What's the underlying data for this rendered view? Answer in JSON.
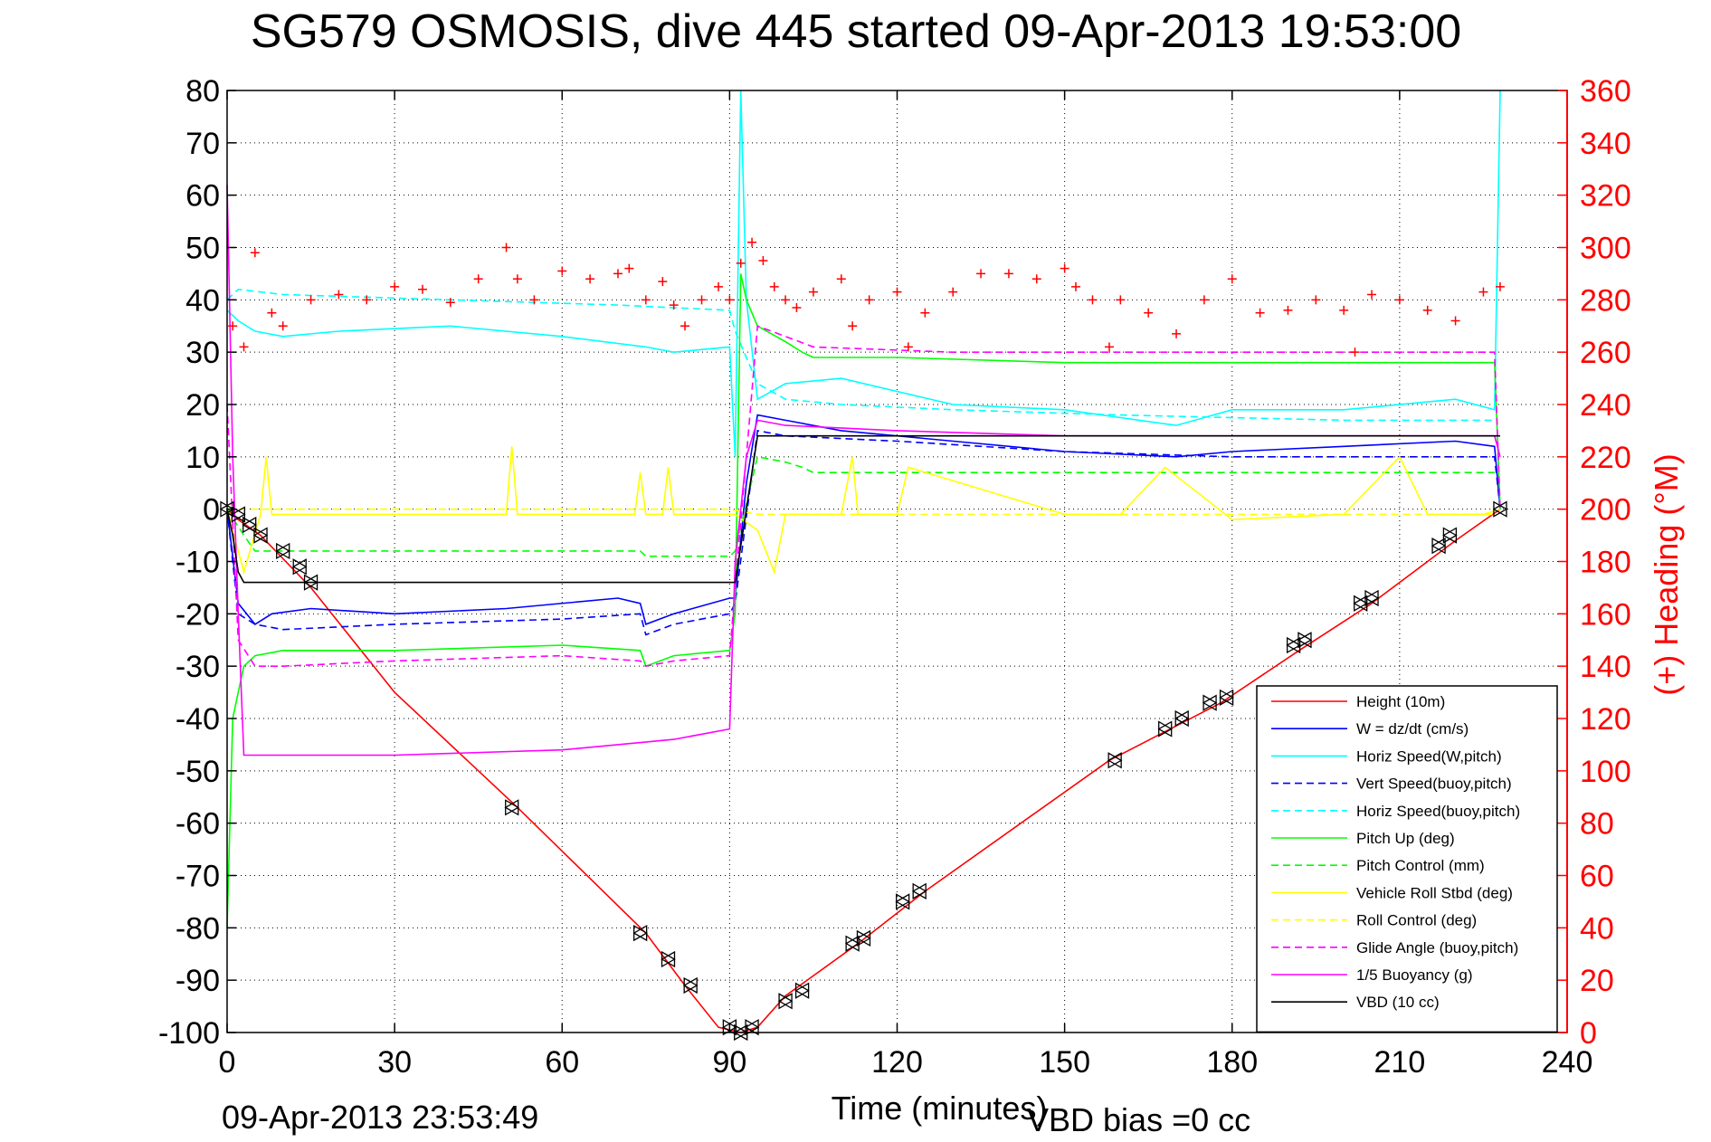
{
  "chart_data": {
    "type": "line",
    "title": "SG579 OSMOSIS, dive 445 started 09-Apr-2013 19:53:00",
    "xlabel": "Time (minutes)",
    "ylabel_right": "(+) Heading (°M)",
    "footer_left": "09-Apr-2013 23:53:49",
    "footer_right": "VBD bias =0 cc",
    "xlim": [
      0,
      240
    ],
    "ylim": [
      -100,
      80
    ],
    "ylim_right": [
      0,
      360
    ],
    "x_ticks": [
      0,
      30,
      60,
      90,
      120,
      150,
      180,
      210,
      240
    ],
    "y_ticks": [
      80,
      70,
      60,
      50,
      40,
      30,
      20,
      10,
      0,
      -10,
      -20,
      -30,
      -40,
      -50,
      -60,
      -70,
      -80,
      -90,
      -100
    ],
    "y_ticks_right": [
      360,
      340,
      320,
      300,
      280,
      260,
      240,
      220,
      200,
      180,
      160,
      140,
      120,
      100,
      80,
      60,
      40,
      20,
      0
    ],
    "grid": true,
    "legend_position": "bottom-right",
    "colors": {
      "red": "#ff0000",
      "blue": "#0000ff",
      "cyan": "#00ffff",
      "green": "#00ff00",
      "yellow": "#ffff00",
      "magenta": "#ff00ff",
      "black": "#000000"
    },
    "series": [
      {
        "name": "Height (10m)",
        "color": "#ff0000",
        "style": "solid",
        "x": [
          0,
          2,
          6,
          15,
          30,
          52,
          75,
          82,
          88,
          92,
          95,
          100,
          113,
          125,
          158,
          178,
          192,
          205,
          220,
          228
        ],
        "y": [
          0,
          -2,
          -5,
          -15,
          -35,
          -57,
          -81,
          -91,
          -99,
          -100,
          -99,
          -93,
          -83,
          -73,
          -48,
          -37,
          -27,
          -18,
          -6,
          0
        ]
      },
      {
        "name": "W = dz/dt (cm/s)",
        "color": "#0000ff",
        "style": "solid",
        "x": [
          0,
          2,
          5,
          8,
          15,
          30,
          50,
          70,
          74,
          75,
          80,
          90,
          91,
          93,
          95,
          100,
          110,
          130,
          150,
          170,
          180,
          200,
          220,
          227,
          228
        ],
        "y": [
          0,
          -18,
          -22,
          -20,
          -19,
          -20,
          -19,
          -17,
          -18,
          -22,
          -20,
          -17,
          -17,
          5,
          18,
          17,
          15,
          13,
          11,
          10,
          11,
          12,
          13,
          12,
          0
        ]
      },
      {
        "name": "Horiz Speed(W,pitch)",
        "color": "#00ffff",
        "style": "solid",
        "x": [
          0,
          2,
          5,
          10,
          20,
          40,
          60,
          75,
          80,
          90,
          91,
          92,
          93,
          95,
          100,
          110,
          130,
          150,
          170,
          180,
          200,
          220,
          227,
          228
        ],
        "y": [
          38,
          36,
          34,
          33,
          34,
          35,
          33,
          31,
          30,
          31,
          10,
          80,
          40,
          21,
          24,
          25,
          20,
          19,
          16,
          19,
          19,
          21,
          19,
          80
        ]
      },
      {
        "name": "Vert Speed(buoy,pitch)",
        "color": "#0000ff",
        "style": "dashed",
        "x": [
          0,
          2,
          5,
          10,
          30,
          60,
          74,
          75,
          80,
          90,
          91,
          95,
          100,
          120,
          150,
          180,
          200,
          227,
          228
        ],
        "y": [
          0,
          -20,
          -22,
          -23,
          -22,
          -21,
          -20,
          -24,
          -22,
          -20,
          -18,
          15,
          14,
          13,
          11,
          10,
          10,
          10,
          0
        ]
      },
      {
        "name": "Horiz Speed(buoy,pitch)",
        "color": "#00ffff",
        "style": "dashed",
        "x": [
          0,
          2,
          10,
          40,
          70,
          90,
          91,
          95,
          100,
          110,
          130,
          160,
          200,
          227
        ],
        "y": [
          40,
          42,
          41,
          40,
          39,
          38,
          34,
          24,
          21,
          20,
          19,
          18,
          17,
          17
        ]
      },
      {
        "name": "Pitch Up (deg)",
        "color": "#00ff00",
        "style": "solid",
        "x": [
          0,
          1,
          2,
          3,
          5,
          10,
          30,
          60,
          74,
          75,
          80,
          90,
          91,
          92,
          93,
          95,
          100,
          103,
          105,
          120,
          150,
          180,
          200,
          227,
          228
        ],
        "y": [
          -80,
          -40,
          -35,
          -30,
          -28,
          -27,
          -27,
          -26,
          -27,
          -30,
          -28,
          -27,
          -20,
          45,
          40,
          35,
          32,
          30,
          29,
          29,
          28,
          28,
          28,
          28,
          0
        ]
      },
      {
        "name": "Pitch Control (mm)",
        "color": "#00ff00",
        "style": "dashed",
        "x": [
          0,
          3,
          5,
          30,
          74,
          75,
          90,
          91,
          95,
          100,
          103,
          105,
          227
        ],
        "y": [
          0,
          -5,
          -8,
          -8,
          -8,
          -9,
          -9,
          -8,
          10,
          9,
          8,
          7,
          7
        ]
      },
      {
        "name": "Vehicle Roll Stbd (deg)",
        "color": "#ffff00",
        "style": "solid",
        "x": [
          0,
          3,
          6,
          7,
          8,
          20,
          50,
          51,
          52,
          60,
          73,
          74,
          75,
          78,
          79,
          80,
          90,
          91,
          95,
          98,
          100,
          110,
          112,
          113,
          120,
          122,
          150,
          160,
          168,
          180,
          200,
          210,
          215,
          225,
          228
        ],
        "y": [
          0,
          -12,
          -1,
          10,
          -1,
          -1,
          -1,
          12,
          -1,
          -1,
          -1,
          7,
          -1,
          -1,
          8,
          -1,
          -1,
          -1,
          -4,
          -12,
          -1,
          -1,
          10,
          -1,
          -1,
          8,
          -1,
          -1,
          8,
          -2,
          -1,
          10,
          -1,
          -1,
          0
        ]
      },
      {
        "name": "Roll Control (deg)",
        "color": "#ffff00",
        "style": "dashed",
        "x": [
          0,
          5,
          90,
          95,
          100,
          227
        ],
        "y": [
          0,
          0,
          0,
          -1,
          -1,
          -1
        ]
      },
      {
        "name": "Glide Angle (buoy,pitch)",
        "color": "#ff00ff",
        "style": "dashed",
        "x": [
          0,
          2,
          5,
          10,
          30,
          60,
          74,
          75,
          80,
          90,
          91,
          95,
          100,
          105,
          130,
          160,
          200,
          227,
          228
        ],
        "y": [
          20,
          -25,
          -30,
          -30,
          -29,
          -28,
          -29,
          -30,
          -29,
          -28,
          -15,
          35,
          33,
          31,
          30,
          30,
          30,
          30,
          0
        ]
      },
      {
        "name": "1/5 Buoyancy (g)",
        "color": "#ff00ff",
        "style": "solid",
        "x": [
          0,
          1,
          2,
          3,
          4,
          5,
          30,
          60,
          80,
          90,
          91,
          93,
          95,
          100,
          120,
          150,
          180,
          200,
          227,
          228
        ],
        "y": [
          62,
          10,
          -20,
          -47,
          -47,
          -47,
          -47,
          -46,
          -44,
          -42,
          -10,
          10,
          17,
          16,
          15,
          14,
          14,
          14,
          14,
          10
        ]
      },
      {
        "name": "VBD (10 cc)",
        "color": "#000000",
        "style": "solid",
        "x": [
          0,
          1,
          2,
          3,
          5,
          30,
          60,
          90,
          91,
          93,
          95,
          100,
          150,
          200,
          228
        ],
        "y": [
          0,
          -5,
          -12,
          -14,
          -14,
          -14,
          -14,
          -14,
          -14,
          0,
          14,
          14,
          14,
          14,
          14
        ]
      },
      {
        "name": "Heading",
        "color": "#ff0000",
        "style": "markers",
        "marker": "+",
        "axis": "right",
        "x": [
          1,
          3,
          5,
          8,
          10,
          15,
          20,
          25,
          30,
          35,
          40,
          45,
          50,
          52,
          55,
          60,
          65,
          70,
          72,
          75,
          78,
          80,
          82,
          85,
          88,
          90,
          92,
          94,
          96,
          98,
          100,
          102,
          105,
          110,
          112,
          115,
          120,
          122,
          125,
          130,
          135,
          140,
          145,
          150,
          152,
          155,
          158,
          160,
          165,
          170,
          175,
          180,
          185,
          190,
          195,
          200,
          202,
          205,
          210,
          215,
          220,
          225,
          228
        ],
        "y": [
          270,
          262,
          298,
          275,
          270,
          280,
          282,
          280,
          285,
          284,
          279,
          288,
          300,
          288,
          280,
          291,
          288,
          290,
          292,
          280,
          287,
          278,
          270,
          280,
          285,
          280,
          294,
          302,
          295,
          285,
          280,
          277,
          283,
          288,
          270,
          280,
          283,
          262,
          275,
          283,
          290,
          290,
          288,
          292,
          285,
          280,
          262,
          280,
          275,
          267,
          280,
          288,
          275,
          276,
          280,
          276,
          260,
          282,
          280,
          276,
          272,
          283,
          285
        ]
      }
    ],
    "triangle_markers": {
      "x": [
        0,
        2,
        4,
        6,
        10,
        13,
        15,
        51,
        74,
        79,
        83,
        90,
        92,
        94,
        100,
        103,
        112,
        114,
        121,
        124,
        159,
        168,
        171,
        176,
        179,
        191,
        193,
        203,
        205,
        217,
        219,
        228
      ],
      "y": [
        0,
        -1,
        -3,
        -5,
        -8,
        -11,
        -14,
        -57,
        -81,
        -86,
        -91,
        -99,
        -100,
        -99,
        -94,
        -92,
        -83,
        -82,
        -75,
        -73,
        -48,
        -42,
        -40,
        -37,
        -36,
        -26,
        -25,
        -18,
        -17,
        -7,
        -5,
        0
      ]
    }
  }
}
